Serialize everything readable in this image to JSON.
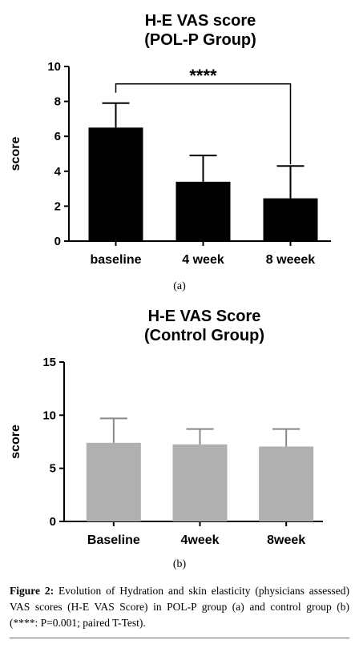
{
  "chart_data": [
    {
      "type": "bar",
      "title": [
        "H-E VAS score",
        "(POL-P Group)"
      ],
      "ylabel": "score",
      "xlabel": "",
      "categories": [
        "baseline",
        "4 week",
        "8 weeek"
      ],
      "values": [
        6.5,
        3.4,
        2.45
      ],
      "errors": [
        1.4,
        1.5,
        1.85
      ],
      "ylim": [
        0,
        10
      ],
      "yticks": [
        "0",
        "2",
        "4",
        "6",
        "8",
        "10"
      ],
      "bar_color": "#000000",
      "grid": false,
      "significance": {
        "label": "****",
        "from": "baseline",
        "to": "8 weeek"
      },
      "panel_label": "(a)"
    },
    {
      "type": "bar",
      "title": [
        "H-E VAS Score",
        "(Control Group)"
      ],
      "ylabel": "score",
      "xlabel": "",
      "categories": [
        "Baseline",
        "4week",
        "8week"
      ],
      "values": [
        7.4,
        7.25,
        7.05
      ],
      "errors": [
        2.3,
        1.45,
        1.65
      ],
      "ylim": [
        0,
        15
      ],
      "yticks": [
        "0",
        "5",
        "10",
        "15"
      ],
      "bar_color": "#b0b0b0",
      "grid": false,
      "panel_label": "(b)"
    }
  ],
  "caption": {
    "label": "Figure 2:",
    "text": " Evolution of Hydration and skin elasticity (physicians assessed) VAS scores (H-E VAS Score) in POL-P group (a) and control group (b) (****: P=0.001; paired T-Test)."
  }
}
